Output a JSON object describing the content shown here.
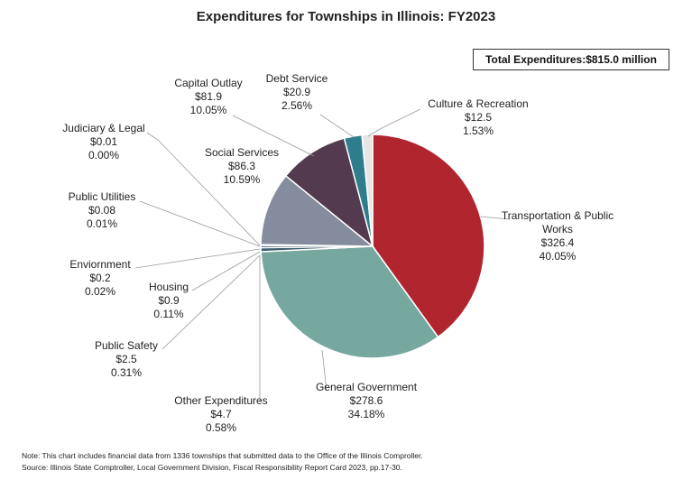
{
  "chart_data": {
    "type": "pie",
    "title": "Expenditures for Townships in Illinois: FY2023",
    "total_label": "Total Expenditures:$815.0 million",
    "unit": "$ million",
    "slices": [
      {
        "name": "Transportation & Public Works",
        "name_lines": [
          "Transportation & Public",
          "Works"
        ],
        "value": 326.4,
        "value_label": "$326.4",
        "percent": 40.05,
        "percent_label": "40.05%",
        "color": "#b1252f"
      },
      {
        "name": "General Government",
        "name_lines": [
          "General Government"
        ],
        "value": 278.6,
        "value_label": "$278.6",
        "percent": 34.18,
        "percent_label": "34.18%",
        "color": "#76a8a0"
      },
      {
        "name": "Other Expenditures",
        "name_lines": [
          "Other Expenditures"
        ],
        "value": 4.7,
        "value_label": "$4.7",
        "percent": 0.58,
        "percent_label": "0.58%",
        "color": "#3b5f6e"
      },
      {
        "name": "Public Safety",
        "name_lines": [
          "Public Safety"
        ],
        "value": 2.5,
        "value_label": "$2.5",
        "percent": 0.31,
        "percent_label": "0.31%",
        "color": "#1f3a5a"
      },
      {
        "name": "Housing",
        "name_lines": [
          "Housing"
        ],
        "value": 0.9,
        "value_label": "$0.9",
        "percent": 0.11,
        "percent_label": "0.11%",
        "color": "#a9c7c2"
      },
      {
        "name": "Enviornment",
        "name_lines": [
          "Enviornment"
        ],
        "value": 0.2,
        "value_label": "$0.2",
        "percent": 0.02,
        "percent_label": "0.02%",
        "color": "#6b8f5a"
      },
      {
        "name": "Public Utilities",
        "name_lines": [
          "Public Utilities"
        ],
        "value": 0.08,
        "value_label": "$0.08",
        "percent": 0.01,
        "percent_label": "0.01%",
        "color": "#7a6a9a"
      },
      {
        "name": "Judiciary & Legal",
        "name_lines": [
          "Judiciary & Legal"
        ],
        "value": 0.01,
        "value_label": "$0.01",
        "percent": 0.0,
        "percent_label": "0.00%",
        "color": "#e3a02f"
      },
      {
        "name": "Social Services",
        "name_lines": [
          "Social Services"
        ],
        "value": 86.3,
        "value_label": "$86.3",
        "percent": 10.59,
        "percent_label": "10.59%",
        "color": "#848c9e"
      },
      {
        "name": "Capital Outlay",
        "name_lines": [
          "Capital Outlay"
        ],
        "value": 81.9,
        "value_label": "$81.9",
        "percent": 10.05,
        "percent_label": "10.05%",
        "color": "#533a4f"
      },
      {
        "name": "Debt Service",
        "name_lines": [
          "Debt Service"
        ],
        "value": 20.9,
        "value_label": "$20.9",
        "percent": 2.56,
        "percent_label": "2.56%",
        "color": "#2e7d8c"
      },
      {
        "name": "Culture & Recreation",
        "name_lines": [
          "Culture & Recreation"
        ],
        "value": 12.5,
        "value_label": "$12.5",
        "percent": 1.53,
        "percent_label": "1.53%",
        "color": "#e6e6e6"
      }
    ]
  },
  "notes": {
    "note": "Note: This chart includes financial data from 1336 townships that submitted data to the Office of the Illinois Comproller.",
    "source": "Source: Illinois State Comptroller,  Local Government Division,  Fiscal Responsibility  Report Card 2023, pp.17-30."
  }
}
